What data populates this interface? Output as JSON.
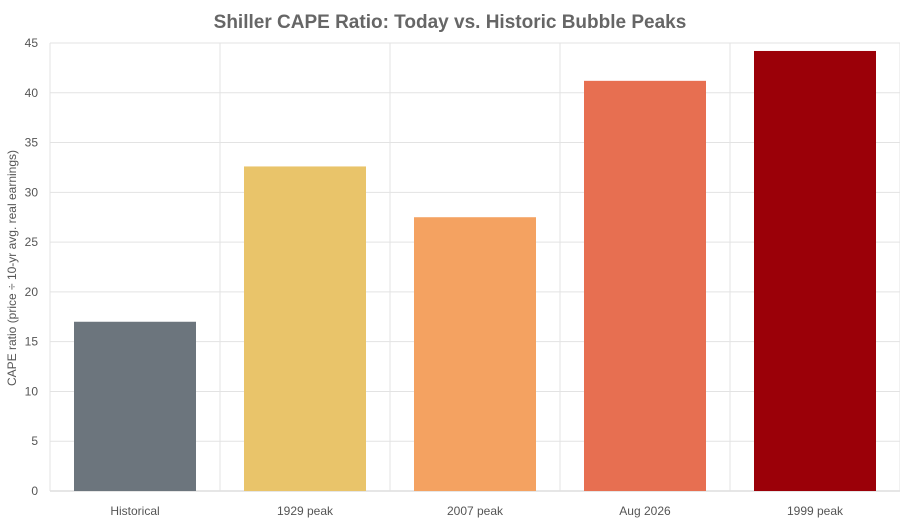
{
  "chart_data": {
    "type": "bar",
    "title": "Shiller CAPE Ratio: Today vs. Historic Bubble Peaks",
    "xlabel": "",
    "ylabel": "CAPE ratio (price ÷ 10-yr avg. real earnings)",
    "categories": [
      "Historical",
      "1929 peak",
      "2007 peak",
      "Aug 2026",
      "1999 peak"
    ],
    "values": [
      17,
      32.6,
      27.5,
      41.2,
      44.2
    ],
    "colors": [
      "#6c757d",
      "#e9c46a",
      "#f4a261",
      "#e76f51",
      "#9b0008"
    ],
    "ylim": [
      0,
      45
    ],
    "yticks": [
      0,
      5,
      10,
      15,
      20,
      25,
      30,
      35,
      40,
      45
    ],
    "grid": true,
    "legend": "none"
  }
}
